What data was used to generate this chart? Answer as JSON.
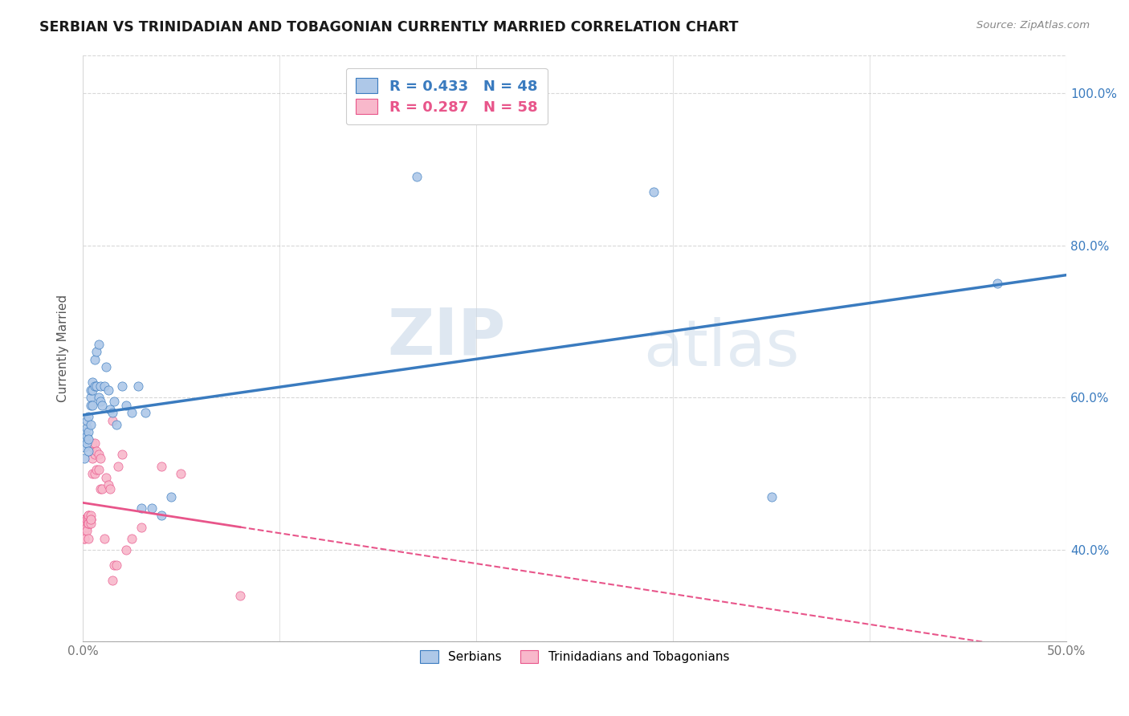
{
  "title": "SERBIAN VS TRINIDADIAN AND TOBAGONIAN CURRENTLY MARRIED CORRELATION CHART",
  "source": "Source: ZipAtlas.com",
  "ylabel": "Currently Married",
  "xlim": [
    0.0,
    0.5
  ],
  "ylim": [
    0.28,
    1.05
  ],
  "xtick_labels": [
    "0.0%",
    "",
    "",
    "",
    "",
    "",
    "",
    "",
    "",
    "",
    "50.0%"
  ],
  "xtick_vals": [
    0.0,
    0.05,
    0.1,
    0.15,
    0.2,
    0.25,
    0.3,
    0.35,
    0.4,
    0.45,
    0.5
  ],
  "ytick_labels": [
    "40.0%",
    "60.0%",
    "80.0%",
    "100.0%"
  ],
  "ytick_vals": [
    0.4,
    0.6,
    0.8,
    1.0
  ],
  "blue_color": "#aec8e8",
  "pink_color": "#f8b8cb",
  "blue_line_color": "#3a7bbf",
  "pink_line_color": "#e8558a",
  "legend_blue_label": "R = 0.433   N = 48",
  "legend_pink_label": "R = 0.287   N = 58",
  "legend_serbians": "Serbians",
  "legend_trinidadians": "Trinidadians and Tobagonians",
  "blue_scatter_x": [
    0.001,
    0.001,
    0.001,
    0.001,
    0.002,
    0.002,
    0.002,
    0.002,
    0.003,
    0.003,
    0.003,
    0.003,
    0.004,
    0.004,
    0.004,
    0.004,
    0.005,
    0.005,
    0.005,
    0.006,
    0.006,
    0.007,
    0.007,
    0.008,
    0.008,
    0.009,
    0.009,
    0.01,
    0.011,
    0.012,
    0.013,
    0.014,
    0.015,
    0.016,
    0.017,
    0.02,
    0.022,
    0.025,
    0.028,
    0.03,
    0.032,
    0.035,
    0.04,
    0.045,
    0.17,
    0.29,
    0.35,
    0.465
  ],
  "blue_scatter_y": [
    0.535,
    0.545,
    0.555,
    0.52,
    0.54,
    0.56,
    0.57,
    0.55,
    0.555,
    0.53,
    0.575,
    0.545,
    0.6,
    0.61,
    0.59,
    0.565,
    0.61,
    0.59,
    0.62,
    0.65,
    0.615,
    0.66,
    0.615,
    0.67,
    0.6,
    0.615,
    0.595,
    0.59,
    0.615,
    0.64,
    0.61,
    0.585,
    0.58,
    0.595,
    0.565,
    0.615,
    0.59,
    0.58,
    0.615,
    0.455,
    0.58,
    0.455,
    0.445,
    0.47,
    0.89,
    0.87,
    0.47,
    0.75
  ],
  "pink_scatter_x": [
    0.001,
    0.001,
    0.001,
    0.001,
    0.001,
    0.001,
    0.001,
    0.001,
    0.001,
    0.001,
    0.002,
    0.002,
    0.002,
    0.002,
    0.002,
    0.002,
    0.003,
    0.003,
    0.003,
    0.003,
    0.003,
    0.003,
    0.003,
    0.004,
    0.004,
    0.004,
    0.004,
    0.004,
    0.005,
    0.005,
    0.005,
    0.005,
    0.006,
    0.006,
    0.006,
    0.007,
    0.007,
    0.008,
    0.008,
    0.009,
    0.009,
    0.01,
    0.011,
    0.012,
    0.013,
    0.014,
    0.015,
    0.016,
    0.017,
    0.018,
    0.02,
    0.022,
    0.025,
    0.03,
    0.05,
    0.08,
    0.015,
    0.04
  ],
  "pink_scatter_y": [
    0.435,
    0.415,
    0.44,
    0.43,
    0.425,
    0.43,
    0.44,
    0.415,
    0.435,
    0.44,
    0.44,
    0.435,
    0.44,
    0.43,
    0.425,
    0.44,
    0.44,
    0.415,
    0.435,
    0.445,
    0.44,
    0.435,
    0.445,
    0.44,
    0.44,
    0.435,
    0.445,
    0.44,
    0.535,
    0.52,
    0.54,
    0.5,
    0.54,
    0.5,
    0.525,
    0.53,
    0.505,
    0.505,
    0.525,
    0.52,
    0.48,
    0.48,
    0.415,
    0.495,
    0.485,
    0.48,
    0.36,
    0.38,
    0.38,
    0.51,
    0.525,
    0.4,
    0.415,
    0.43,
    0.5,
    0.34,
    0.57,
    0.51
  ],
  "watermark_zip": "ZIP",
  "watermark_atlas": "atlas",
  "background_color": "#ffffff",
  "grid_color": "#d8d8d8",
  "tick_color": "#aaaaaa"
}
